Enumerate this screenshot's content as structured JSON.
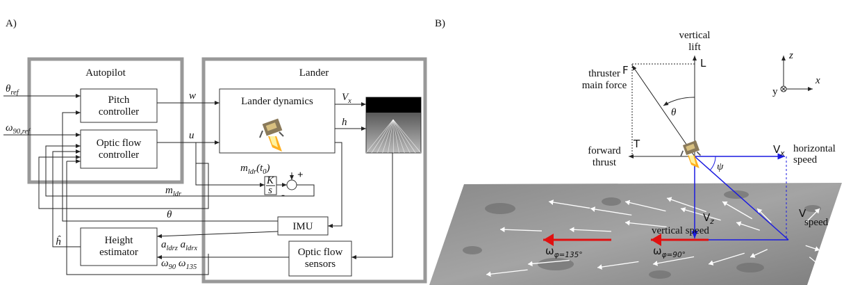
{
  "panel_a": {
    "label": "A)",
    "autopilot": "Autopilot",
    "lander": "Lander",
    "theta_ref": [
      "θ",
      {
        "sub": "ref"
      }
    ],
    "omega_ref": [
      "ω",
      {
        "sub": "90,ref"
      }
    ],
    "pitch_controller": [
      "Pitch",
      "controller"
    ],
    "optic_flow_controller": [
      "Optic flow",
      "controller"
    ],
    "w": "w",
    "u": "u",
    "lander_dynamics": "Lander dynamics",
    "vx": [
      "V",
      {
        "sub": "x"
      }
    ],
    "h": "h",
    "m_ldr_t0": [
      "m",
      {
        "sub": "ldr"
      },
      "(t",
      {
        "sub": "0"
      },
      ")"
    ],
    "k": "K",
    "s": "s",
    "plus": "+",
    "minus": "-",
    "m_ldr": [
      "m",
      {
        "sub": "ldr"
      }
    ],
    "theta": "θ",
    "imu": "IMU",
    "h_hat": "ĥ",
    "height_estimator": [
      "Height",
      "estimator"
    ],
    "accel": [
      "a",
      {
        "sub": "ldrz"
      },
      " a",
      {
        "sub": "ldrx"
      }
    ],
    "omegas": [
      "ω",
      {
        "sub": "90"
      },
      " ω",
      {
        "sub": "135"
      }
    ],
    "optic_flow_sensors": [
      "Optic flow",
      "sensors"
    ]
  },
  "panel_b": {
    "label": "B)",
    "vertical_lift": [
      "vertical",
      "lift"
    ],
    "l": "L",
    "f": "F",
    "thruster_main_force": [
      "thruster",
      "main force"
    ],
    "theta": "θ",
    "t": "T",
    "forward_thrust": [
      "forward",
      "thrust"
    ],
    "vx": [
      "V",
      {
        "sub": "x"
      }
    ],
    "horizontal_speed": [
      "horizontal",
      "speed"
    ],
    "psi": "ψ",
    "vz": [
      "V",
      {
        "sub": "z"
      }
    ],
    "vertical_speed": "vertical speed",
    "v": "V",
    "speed": "speed",
    "omega_135": [
      "ω",
      {
        "sub": "φ=135°"
      }
    ],
    "omega_90": [
      "ω",
      {
        "sub": "φ=90°"
      }
    ],
    "z": "z",
    "x": "x",
    "y": "y"
  }
}
